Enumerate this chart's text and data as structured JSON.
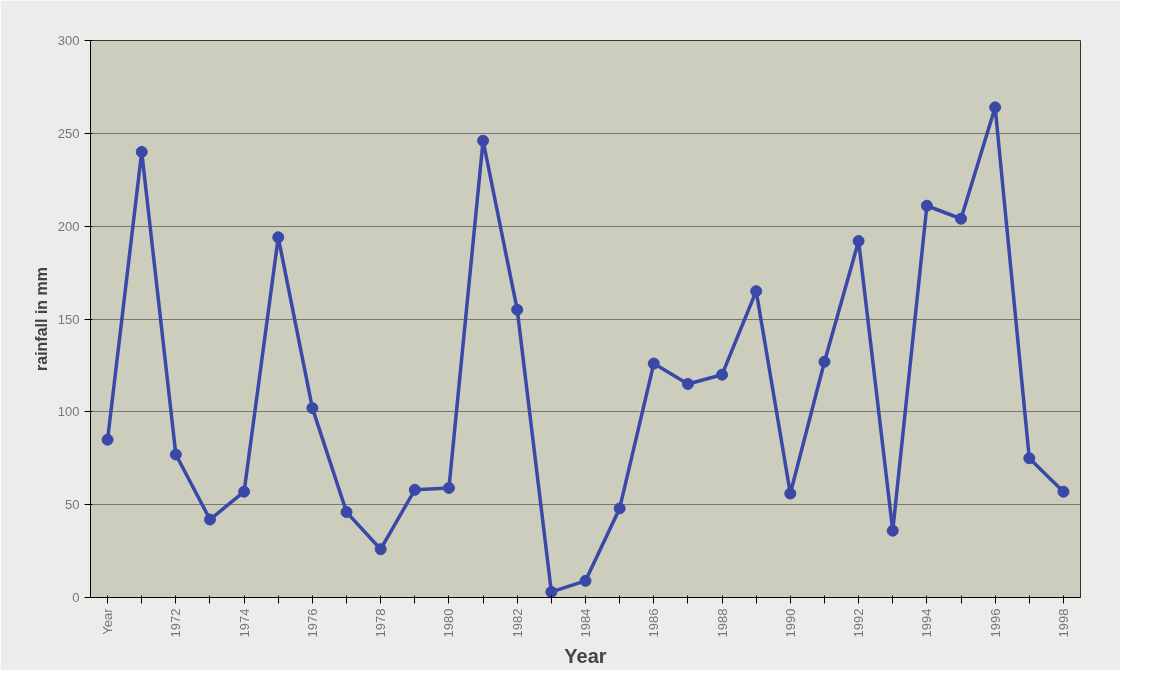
{
  "chart_data": {
    "type": "line",
    "xlabel": "Year",
    "ylabel": "rainfall in mm",
    "categories": [
      "Year",
      null,
      "1972",
      null,
      "1974",
      null,
      "1976",
      null,
      "1978",
      null,
      "1980",
      null,
      "1982",
      null,
      "1984",
      null,
      "1986",
      null,
      "1988",
      null,
      "1990",
      null,
      "1992",
      null,
      "1994",
      null,
      "1996",
      null,
      "1998"
    ],
    "series": [
      {
        "color": "#3a48a8",
        "values": [
          85,
          240,
          77,
          42,
          57,
          194,
          102,
          46,
          26,
          58,
          59,
          246,
          155,
          3,
          9,
          48,
          126,
          115,
          120,
          165,
          56,
          127,
          192,
          36,
          211,
          204,
          264,
          75,
          57
        ]
      }
    ],
    "ylim": [
      0,
      300
    ],
    "yticks": [
      0,
      50,
      100,
      150,
      200,
      250,
      300
    ],
    "grid": "y",
    "marker": "circle"
  }
}
